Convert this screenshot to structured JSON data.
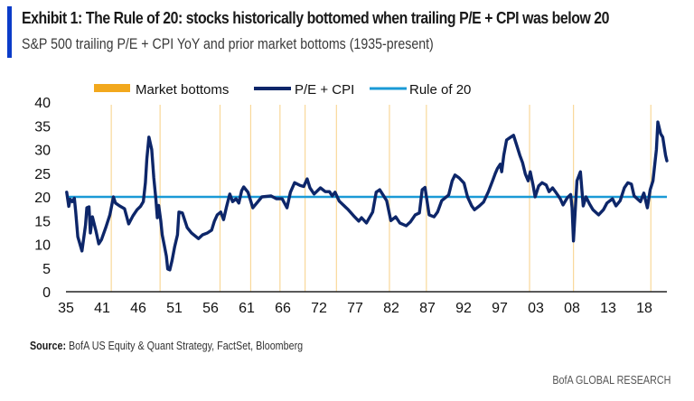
{
  "header": {
    "title": "Exhibit 1: The Rule of 20: stocks historically bottomed when trailing P/E + CPI was below 20",
    "subtitle": "S&P 500 trailing P/E + CPI YoY and prior market bottoms (1935-present)"
  },
  "footer": {
    "source_label": "Source:",
    "source_text": " BofA US Equity & Quant Strategy, FactSet, Bloomberg",
    "brand": "BofA GLOBAL RESEARCH"
  },
  "colors": {
    "title_accent": "#0b3cc9",
    "pe_cpi": "#0d2669",
    "rule_of_20": "#1a9ad6",
    "market_bottoms": "#f2a81d",
    "axis": "#222222"
  },
  "chart_data": {
    "type": "line",
    "title": "Exhibit 1: The Rule of 20: stocks historically bottomed when trailing P/E + CPI was below 20",
    "subtitle": "S&P 500 trailing P/E + CPI YoY and prior market bottoms (1935-present)",
    "xlabel": "",
    "ylabel": "",
    "xlim": [
      1935,
      2021.2
    ],
    "ylim": [
      0,
      40
    ],
    "yticks": [
      0,
      5,
      10,
      15,
      20,
      25,
      30,
      35,
      40
    ],
    "xtick_labels": [
      "35",
      "41",
      "46",
      "51",
      "56",
      "61",
      "66",
      "72",
      "77",
      "82",
      "87",
      "92",
      "97",
      "03",
      "08",
      "13",
      "18"
    ],
    "xtick_positions": [
      1935,
      1940.4,
      1945.8,
      1951.2,
      1956.6,
      1962,
      1967.4,
      1972.8,
      1978.2,
      1983.6,
      1989,
      1994.4,
      1999.8,
      2005.2,
      2010.6,
      2016,
      2021.4
    ],
    "grid": false,
    "legend": {
      "placement": "top",
      "entries": [
        {
          "label": "Market bottoms",
          "kind": "bar"
        },
        {
          "label": "P/E + CPI",
          "kind": "line"
        },
        {
          "label": "Rule of 20",
          "kind": "line"
        }
      ]
    },
    "market_bottoms": [
      1941.5,
      1948.5,
      1957.1,
      1961.5,
      1965.7,
      1969.3,
      1973.8,
      1981.4,
      1986.7,
      2001.5,
      2007.8,
      2018.9
    ],
    "series": [
      {
        "name": "Rule of 20",
        "x": [
          1935,
          2021.2
        ],
        "y": [
          20,
          20
        ]
      },
      {
        "name": "P/E + CPI",
        "x": [
          1935.1,
          1935.4,
          1935.6,
          1935.9,
          1936.2,
          1936.4,
          1936.7,
          1937.3,
          1937.8,
          1938.0,
          1938.3,
          1938.5,
          1938.8,
          1939.3,
          1939.7,
          1940.1,
          1940.7,
          1941.3,
          1941.8,
          1942.1,
          1942.7,
          1943.4,
          1944.0,
          1944.6,
          1945.2,
          1945.7,
          1946.1,
          1946.4,
          1946.6,
          1946.9,
          1947.3,
          1947.6,
          1947.9,
          1948.1,
          1948.3,
          1948.6,
          1948.8,
          1949.1,
          1949.4,
          1949.6,
          1949.9,
          1950.2,
          1950.6,
          1951.0,
          1951.2,
          1951.7,
          1952.4,
          1953.0,
          1954.0,
          1954.6,
          1955.3,
          1955.9,
          1956.3,
          1956.7,
          1957.2,
          1957.6,
          1958.0,
          1958.5,
          1958.9,
          1959.4,
          1959.8,
          1960.2,
          1960.5,
          1961.1,
          1961.8,
          1963.1,
          1964.4,
          1965.2,
          1966.0,
          1966.7,
          1967.2,
          1967.8,
          1968.6,
          1969.1,
          1969.6,
          1970.0,
          1970.6,
          1971.5,
          1972.2,
          1972.8,
          1973.2,
          1973.6,
          1974.2,
          1975.5,
          1976.4,
          1977.0,
          1977.4,
          1978.1,
          1979.0,
          1979.5,
          1980.0,
          1981.0,
          1981.6,
          1982.3,
          1982.9,
          1983.8,
          1984.4,
          1985.1,
          1985.7,
          1986.1,
          1986.5,
          1987.1,
          1987.8,
          1988.3,
          1988.9,
          1989.9,
          1990.4,
          1990.8,
          1991.4,
          1992.1,
          1992.6,
          1993.2,
          1993.6,
          1994.3,
          1994.9,
          1995.6,
          1996.2,
          1996.6,
          1996.9,
          1997.3,
          1997.5,
          1997.8,
          1998.2,
          1998.8,
          1999.2,
          1999.7,
          2000.1,
          2000.5,
          2000.9,
          2001.3,
          2001.6,
          2002.0,
          2002.3,
          2002.8,
          2003.3,
          2003.9,
          2004.3,
          2004.8,
          2005.2,
          2005.9,
          2006.3,
          2006.9,
          2007.4,
          2007.6,
          2007.8,
          2008.3,
          2008.8,
          2009.2,
          2009.6,
          2010.1,
          2010.6,
          2011.4,
          2012.1,
          2012.6,
          2013.4,
          2013.9,
          2014.5,
          2015.1,
          2015.6,
          2016.1,
          2016.5,
          2017.4,
          2017.9,
          2018.4,
          2018.8,
          2019.2,
          2019.7,
          2019.9,
          2020.3,
          2020.6,
          2021.0,
          2021.2
        ],
        "y": [
          21,
          18,
          19.5,
          19,
          19.7,
          16.8,
          11.6,
          8.6,
          14,
          17.7,
          17.9,
          12.4,
          15.8,
          12.8,
          10.1,
          11,
          13.5,
          16.2,
          20,
          18.7,
          18.1,
          17.5,
          14.3,
          16,
          17.3,
          18,
          19,
          23,
          28,
          32.6,
          30,
          24,
          19.5,
          15.6,
          18.2,
          15,
          12,
          9.8,
          7.5,
          4.8,
          4.6,
          6.5,
          9.5,
          12,
          16.8,
          16.6,
          13.5,
          12.4,
          11.2,
          12,
          12.4,
          13,
          14.9,
          16.2,
          16.8,
          15.2,
          17.7,
          20.6,
          19,
          19.6,
          18.7,
          21.3,
          22.1,
          21,
          17.7,
          20,
          20.2,
          19.6,
          19.6,
          17.7,
          21,
          23,
          22.4,
          22.2,
          23.8,
          21.9,
          20.6,
          21.9,
          21.1,
          21.1,
          20.2,
          21,
          19.1,
          17.3,
          15.8,
          14.9,
          15.6,
          14.5,
          16.8,
          21,
          21.5,
          19.2,
          15,
          15.8,
          14.5,
          13.9,
          14.7,
          16.2,
          16.6,
          21.5,
          22,
          16.2,
          15.8,
          16.8,
          19.2,
          20.4,
          23.4,
          24.6,
          24,
          22.9,
          20,
          18.1,
          17.3,
          18.1,
          18.9,
          21.1,
          23.4,
          25,
          26,
          26.9,
          25.3,
          28.8,
          32,
          32.6,
          33,
          30.7,
          28.8,
          27.2,
          24.8,
          23.4,
          25.3,
          22.5,
          20,
          22.3,
          23,
          22.5,
          21.1,
          21.9,
          21.1,
          19.6,
          18.3,
          19.8,
          20.5,
          17.7,
          10.7,
          23.4,
          25.3,
          18.1,
          20,
          18.5,
          17.3,
          16.2,
          17.3,
          18.7,
          19.6,
          18.1,
          19.2,
          21.9,
          23,
          22.7,
          20.2,
          19.0,
          20.8,
          17.7,
          21.5,
          23.4,
          30,
          35.8,
          33.3,
          32.6,
          28.8,
          27.6
        ]
      }
    ]
  }
}
